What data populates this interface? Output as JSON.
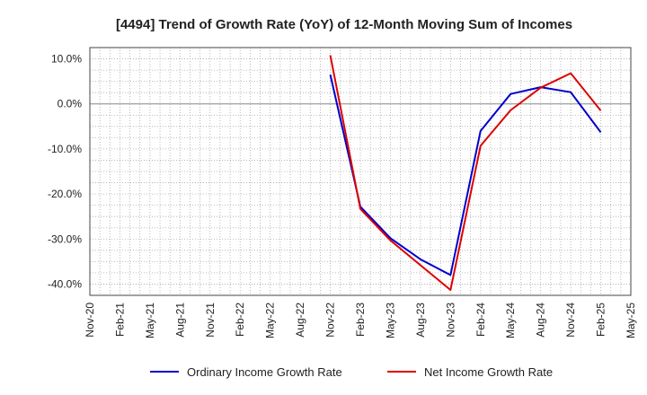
{
  "chart_data": {
    "type": "line",
    "title": "[4494]  Trend of Growth Rate (YoY) of 12-Month Moving Sum of Incomes",
    "xlabel": "",
    "ylabel": "",
    "x_ticks": [
      "Nov-20",
      "Feb-21",
      "May-21",
      "Aug-21",
      "Nov-21",
      "Feb-22",
      "May-22",
      "Aug-22",
      "Nov-22",
      "Feb-23",
      "May-23",
      "Aug-23",
      "Nov-23",
      "Feb-24",
      "May-24",
      "Aug-24",
      "Nov-24",
      "Feb-25",
      "May-25"
    ],
    "y_ticks": [
      "10.0%",
      "0.0%",
      "-10.0%",
      "-20.0%",
      "-30.0%",
      "-40.0%"
    ],
    "y_tick_values": [
      10,
      0,
      -10,
      -20,
      -30,
      -40
    ],
    "ylim": [
      -42.5,
      12.5
    ],
    "grid": true,
    "legend_position": "bottom",
    "series": [
      {
        "name": "Ordinary Income Growth Rate",
        "color": "#0000cc",
        "x": [
          "Nov-22",
          "Feb-23",
          "May-23",
          "Aug-23",
          "Nov-23",
          "Feb-24",
          "May-24",
          "Aug-24",
          "Nov-24",
          "Feb-25"
        ],
        "values": [
          6.5,
          -22.8,
          -29.8,
          -34.5,
          -38.0,
          -6.0,
          2.2,
          3.7,
          2.6,
          -6.3
        ]
      },
      {
        "name": "Net Income Growth Rate",
        "color": "#dd0000",
        "x": [
          "Nov-22",
          "Feb-23",
          "May-23",
          "Aug-23",
          "Nov-23",
          "Feb-24",
          "May-24",
          "Aug-24",
          "Nov-24",
          "Feb-25"
        ],
        "values": [
          10.8,
          -23.3,
          -30.3,
          -35.8,
          -41.3,
          -9.3,
          -1.4,
          3.6,
          6.8,
          -1.5
        ]
      }
    ]
  }
}
